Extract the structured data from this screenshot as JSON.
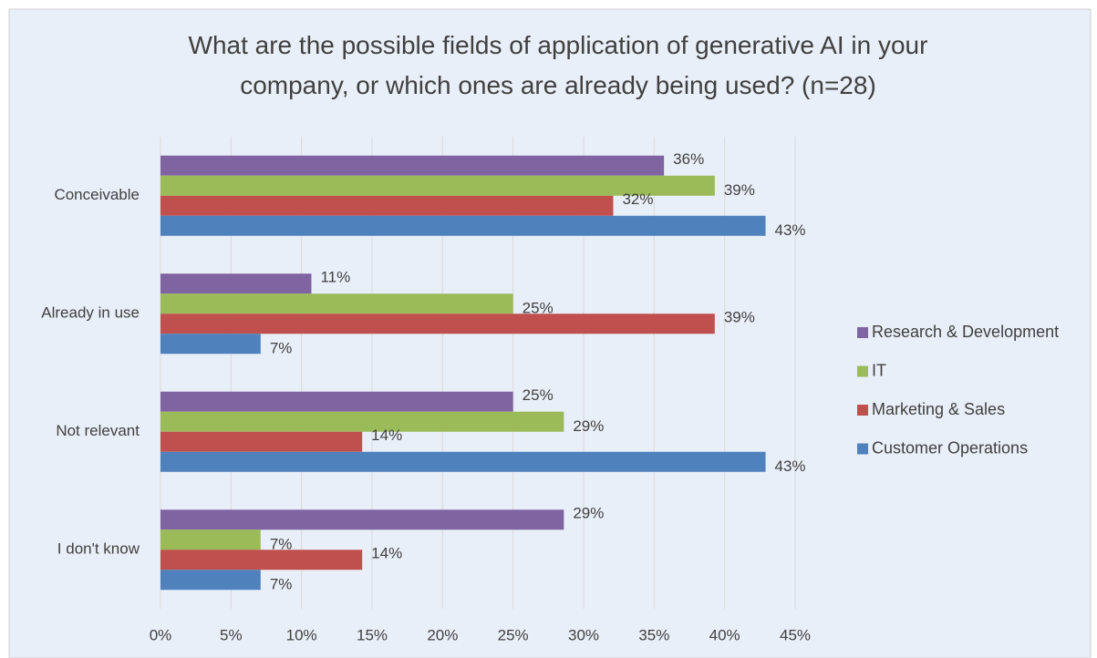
{
  "chart_data": {
    "type": "bar",
    "orientation": "horizontal",
    "title": "What are the possible fields of application of generative AI in your company, or which ones are already being used? (n=28)",
    "categories": [
      "Conceivable",
      "Already in use",
      "Not relevant",
      "I don't know"
    ],
    "series": [
      {
        "name": "Research & Development",
        "color": "#8064a2",
        "values": [
          35.7,
          10.7,
          25.0,
          28.6
        ],
        "value_labels": [
          "36%",
          "11%",
          "25%",
          "29%"
        ]
      },
      {
        "name": "IT",
        "color": "#9bbb59",
        "values": [
          39.3,
          25.0,
          28.6,
          7.1
        ],
        "value_labels": [
          "39%",
          "25%",
          "29%",
          "7%"
        ]
      },
      {
        "name": "Marketing & Sales",
        "color": "#c0504d",
        "values": [
          32.1,
          39.3,
          14.3,
          14.3
        ],
        "value_labels": [
          "32%",
          "39%",
          "14%",
          "14%"
        ]
      },
      {
        "name": "Customer Operations",
        "color": "#4f81bd",
        "values": [
          42.9,
          7.1,
          42.9,
          7.1
        ],
        "value_labels": [
          "43%",
          "7%",
          "43%",
          "7%"
        ]
      }
    ],
    "xlim": [
      0,
      45
    ],
    "xticks": [
      {
        "value": 0,
        "label": "0%"
      },
      {
        "value": 5,
        "label": "5%"
      },
      {
        "value": 10,
        "label": "10%"
      },
      {
        "value": 15,
        "label": "15%"
      },
      {
        "value": 20,
        "label": "20%"
      },
      {
        "value": 25,
        "label": "25%"
      },
      {
        "value": 30,
        "label": "30%"
      },
      {
        "value": 35,
        "label": "35%"
      },
      {
        "value": 40,
        "label": "40%"
      },
      {
        "value": 45,
        "label": "45%"
      }
    ],
    "grid": true,
    "legend": "right"
  }
}
